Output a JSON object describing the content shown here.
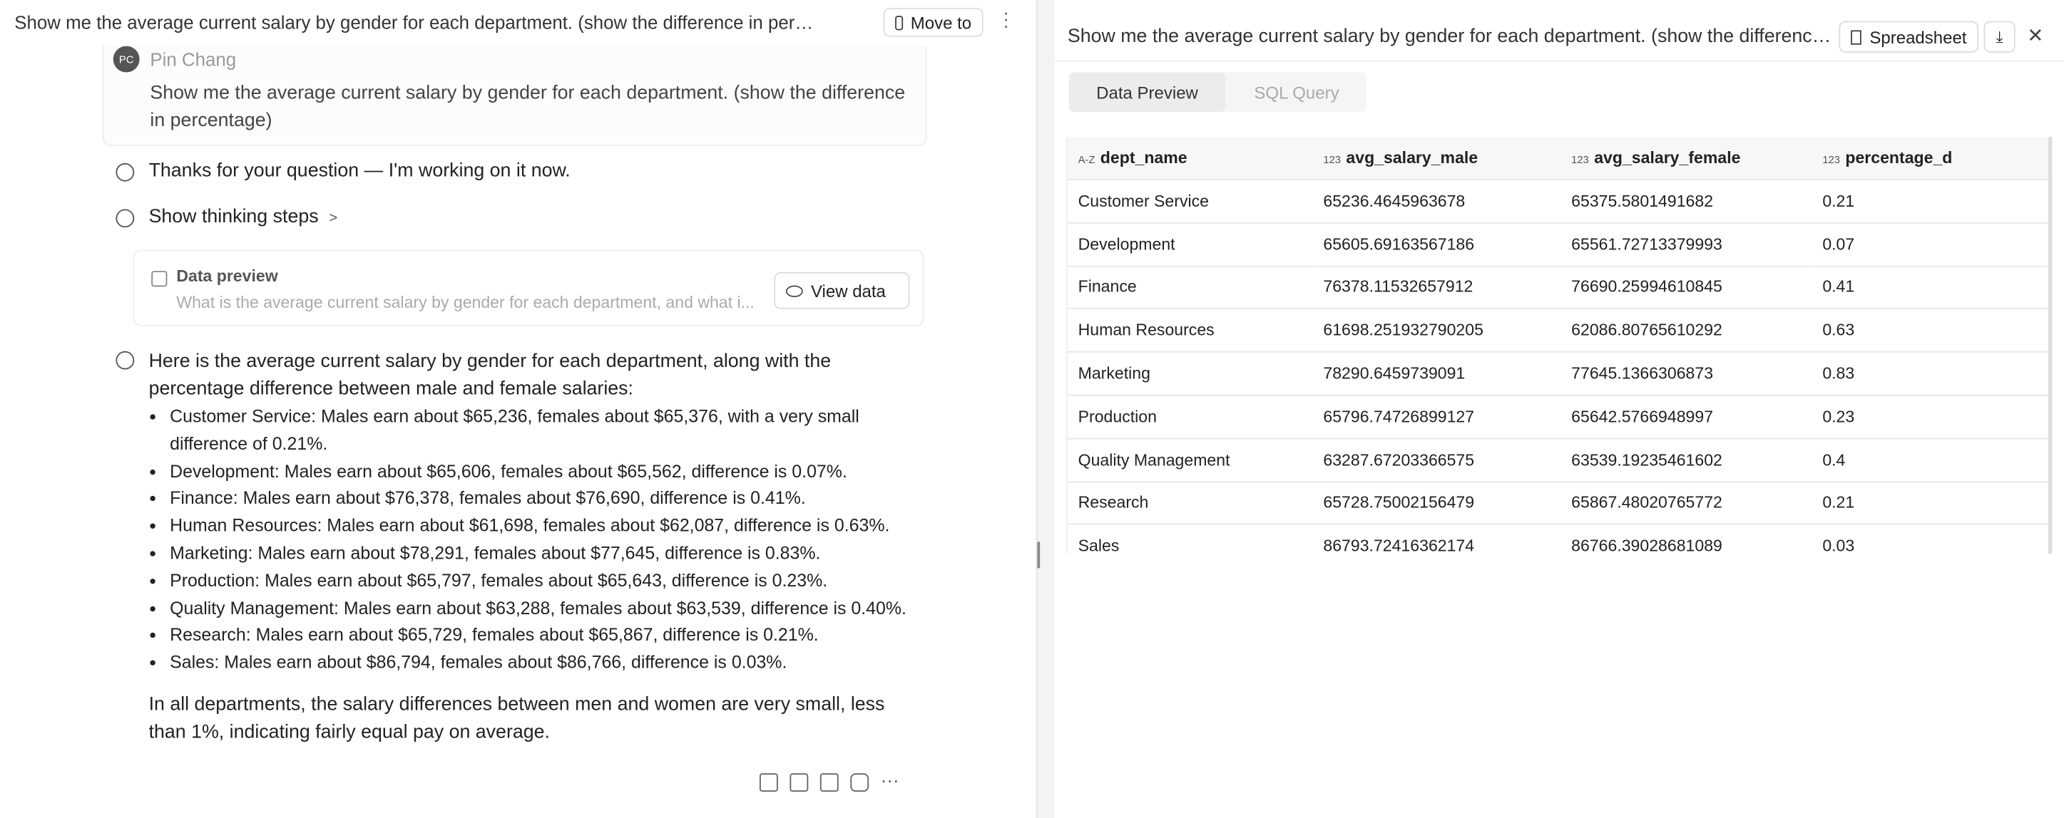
{
  "left": {
    "title": "Show me the average current salary by gender for each department. (show the difference in per…",
    "move_to": "Move to",
    "user": {
      "initials": "PC",
      "name": "Pin Chang",
      "question": "Show me the average current salary by gender for each department. (show the difference in percentage)"
    },
    "ack": "Thanks for your question — I'm working on it now.",
    "thinking": "Show thinking steps",
    "preview": {
      "title": "Data preview",
      "subtitle": "What is the average current salary by gender for each department, and what i...",
      "button": "View data"
    },
    "answer": {
      "intro": "Here is the average current salary by gender for each department, along with the percentage difference between male and female salaries:",
      "bullets": [
        "Customer Service: Males earn about $65,236, females about $65,376, with a very small difference of 0.21%.",
        "Development: Males earn about $65,606, females about $65,562, difference is 0.07%.",
        "Finance: Males earn about $76,378, females about $76,690, difference is 0.41%.",
        "Human Resources: Males earn about $61,698, females about $62,087, difference is 0.63%.",
        "Marketing: Males earn about $78,291, females about $77,645, difference is 0.83%.",
        "Production: Males earn about $65,797, females about $65,643, difference is 0.23%.",
        "Quality Management: Males earn about $63,288, females about $63,539, difference is 0.40%.",
        "Research: Males earn about $65,729, females about $65,867, difference is 0.21%.",
        "Sales: Males earn about $86,794, females about $86,766, difference is 0.03%."
      ],
      "conclusion": "In all departments, the salary differences between men and women are very small, less than 1%, indicating fairly equal pay on average."
    }
  },
  "right": {
    "title": "Show me the average current salary by gender for each department. (show the differenc…",
    "spreadsheet": "Spreadsheet",
    "tabs": [
      "Data Preview",
      "SQL Query"
    ],
    "table": {
      "columns": [
        {
          "type": "A-Z",
          "name": "dept_name"
        },
        {
          "type": "123",
          "name": "avg_salary_male"
        },
        {
          "type": "123",
          "name": "avg_salary_female"
        },
        {
          "type": "123",
          "name": "percentage_d"
        }
      ],
      "rows": [
        [
          "Customer Service",
          "65236.4645963678",
          "65375.5801491682",
          "0.21"
        ],
        [
          "Development",
          "65605.69163567186",
          "65561.72713379993",
          "0.07"
        ],
        [
          "Finance",
          "76378.11532657912",
          "76690.25994610845",
          "0.41"
        ],
        [
          "Human Resources",
          "61698.251932790205",
          "62086.80765610292",
          "0.63"
        ],
        [
          "Marketing",
          "78290.6459739091",
          "77645.1366306873",
          "0.83"
        ],
        [
          "Production",
          "65796.74726899127",
          "65642.5766948997",
          "0.23"
        ],
        [
          "Quality Management",
          "63287.67203366575",
          "63539.19235461602",
          "0.4"
        ],
        [
          "Research",
          "65728.75002156479",
          "65867.48020765772",
          "0.21"
        ],
        [
          "Sales",
          "86793.72416362174",
          "86766.39028681089",
          "0.03"
        ]
      ]
    }
  }
}
